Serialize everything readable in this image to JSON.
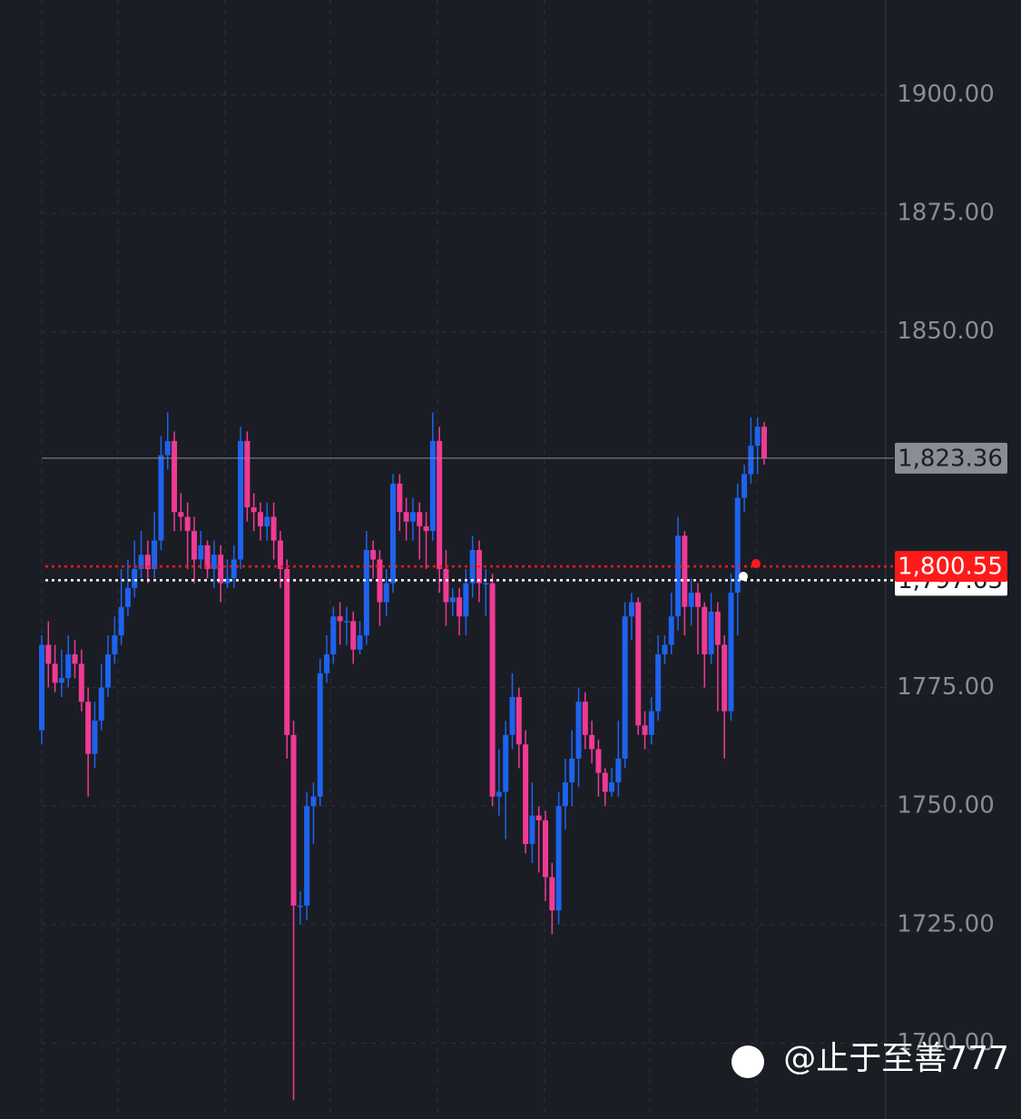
{
  "chart_data": {
    "type": "candlestick",
    "open": [
      1766,
      1784,
      1780,
      1776,
      1777,
      1782,
      1780,
      1772,
      1761,
      1768,
      1775,
      1782,
      1786,
      1792,
      1796,
      1800,
      1803,
      1800,
      1806,
      1824,
      1827,
      1812,
      1811,
      1808,
      1802,
      1805,
      1800,
      1803,
      1797,
      1798,
      1802,
      1827,
      1813,
      1812,
      1809,
      1811,
      1806,
      1800,
      1765,
      1729,
      1729,
      1750,
      1752,
      1778,
      1782,
      1790,
      1789,
      1789,
      1783,
      1786,
      1804,
      1802,
      1793,
      1797,
      1818,
      1812,
      1810,
      1812,
      1809,
      1808,
      1827,
      1800,
      1793,
      1794,
      1790,
      1797,
      1804,
      1797,
      1797,
      1752,
      1753,
      1765,
      1773,
      1763,
      1742,
      1748,
      1747,
      1735,
      1728,
      1750,
      1755,
      1760,
      1772,
      1765,
      1762,
      1757,
      1753,
      1755,
      1760,
      1790,
      1793,
      1767,
      1765,
      1770,
      1782,
      1784,
      1790,
      1807,
      1792,
      1795,
      1792,
      1782,
      1791,
      1784,
      1770,
      1795,
      1815,
      1820,
      1826,
      1830
    ],
    "high": [
      1786,
      1789,
      1784,
      1783,
      1786,
      1785,
      1783,
      1775,
      1772,
      1780,
      1786,
      1790,
      1800,
      1802,
      1806,
      1808,
      1806,
      1812,
      1828,
      1833,
      1829,
      1816,
      1814,
      1811,
      1808,
      1806,
      1806,
      1805,
      1802,
      1805,
      1830,
      1829,
      1816,
      1814,
      1814,
      1814,
      1808,
      1802,
      1768,
      1732,
      1753,
      1755,
      1781,
      1786,
      1792,
      1793,
      1792,
      1791,
      1789,
      1808,
      1806,
      1804,
      1800,
      1820,
      1820,
      1815,
      1815,
      1814,
      1812,
      1833,
      1830,
      1804,
      1796,
      1796,
      1800,
      1807,
      1806,
      1800,
      1799,
      1762,
      1768,
      1778,
      1775,
      1766,
      1755,
      1750,
      1749,
      1738,
      1753,
      1760,
      1766,
      1775,
      1774,
      1768,
      1764,
      1758,
      1758,
      1768,
      1793,
      1795,
      1794,
      1770,
      1773,
      1786,
      1786,
      1795,
      1811,
      1808,
      1798,
      1797,
      1793,
      1795,
      1793,
      1786,
      1799,
      1818,
      1822,
      1832,
      1832,
      1831
    ],
    "low": [
      1763,
      1775,
      1774,
      1773,
      1775,
      1777,
      1770,
      1752,
      1758,
      1766,
      1773,
      1780,
      1784,
      1790,
      1794,
      1798,
      1797,
      1798,
      1804,
      1821,
      1808,
      1808,
      1800,
      1797,
      1800,
      1798,
      1796,
      1793,
      1796,
      1796,
      1800,
      1810,
      1808,
      1806,
      1806,
      1802,
      1796,
      1760,
      1688,
      1725,
      1726,
      1742,
      1750,
      1776,
      1780,
      1784,
      1784,
      1780,
      1782,
      1784,
      1798,
      1788,
      1790,
      1795,
      1808,
      1806,
      1806,
      1802,
      1800,
      1806,
      1795,
      1788,
      1790,
      1786,
      1786,
      1794,
      1793,
      1790,
      1750,
      1748,
      1743,
      1762,
      1758,
      1740,
      1738,
      1736,
      1730,
      1723,
      1725,
      1745,
      1750,
      1754,
      1762,
      1759,
      1752,
      1750,
      1752,
      1752,
      1758,
      1785,
      1765,
      1762,
      1763,
      1768,
      1780,
      1782,
      1787,
      1786,
      1788,
      1782,
      1775,
      1780,
      1770,
      1760,
      1768,
      1786,
      1812,
      1818,
      1820,
      1822
    ],
    "close": [
      1784,
      1780,
      1776,
      1777,
      1782,
      1780,
      1772,
      1761,
      1768,
      1775,
      1782,
      1786,
      1792,
      1796,
      1800,
      1803,
      1800,
      1806,
      1824,
      1827,
      1812,
      1811,
      1808,
      1802,
      1805,
      1800,
      1803,
      1797,
      1798,
      1802,
      1827,
      1813,
      1812,
      1809,
      1811,
      1806,
      1800,
      1765,
      1729,
      1729,
      1750,
      1752,
      1778,
      1782,
      1790,
      1789,
      1789,
      1783,
      1786,
      1804,
      1802,
      1793,
      1797,
      1818,
      1812,
      1810,
      1812,
      1809,
      1808,
      1827,
      1800,
      1793,
      1794,
      1790,
      1797,
      1804,
      1797,
      1797,
      1752,
      1753,
      1765,
      1773,
      1763,
      1742,
      1748,
      1747,
      1735,
      1728,
      1750,
      1755,
      1760,
      1772,
      1765,
      1762,
      1757,
      1753,
      1755,
      1760,
      1790,
      1793,
      1767,
      1765,
      1770,
      1782,
      1784,
      1790,
      1807,
      1792,
      1795,
      1792,
      1782,
      1791,
      1784,
      1770,
      1795,
      1815,
      1820,
      1826,
      1830,
      1823.36
    ],
    "up_color": "#1e63ee",
    "down_color": "#f03a94",
    "ylim": [
      1684,
      1920
    ],
    "yticks": [
      {
        "value": 1700,
        "label": "1700.00"
      },
      {
        "value": 1725,
        "label": "1725.00"
      },
      {
        "value": 1750,
        "label": "1750.00"
      },
      {
        "value": 1775,
        "label": "1775.00"
      },
      {
        "value": 1850,
        "label": "1850.00"
      },
      {
        "value": 1875,
        "label": "1875.00"
      },
      {
        "value": 1900,
        "label": "1900.00"
      }
    ],
    "grid": true,
    "price_lines": [
      {
        "value": 1823.36,
        "label": "1,823.36",
        "color": "#8a8d94"
      },
      {
        "value": 1797.63,
        "label": "1,797.63",
        "color": "#ffffff"
      },
      {
        "value": 1800.55,
        "label": "1,800.55",
        "color": "#ff1a1a"
      }
    ],
    "watermark": "@止于至善777"
  }
}
